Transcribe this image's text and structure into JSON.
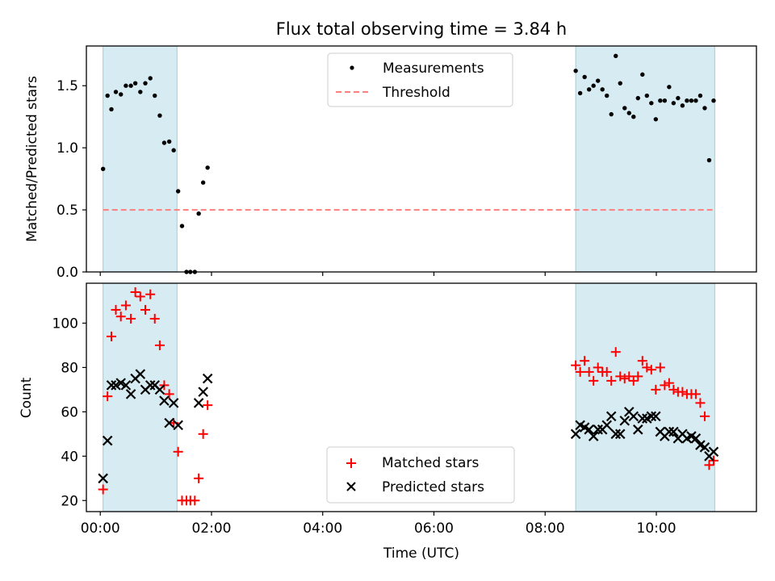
{
  "chart_data": [
    {
      "type": "scatter",
      "title": "Flux total observing time = 3.84 h",
      "xlabel": "",
      "ylabel": "Matched/Predicted stars",
      "xlim": [
        -0.25,
        11.8
      ],
      "ylim": [
        0.0,
        1.82
      ],
      "yticks": [
        0.0,
        0.5,
        1.0,
        1.5
      ],
      "ytick_labels": [
        "0.0",
        "0.5",
        "1.0",
        "1.5"
      ],
      "xticks": [
        0,
        2,
        4,
        6,
        8,
        10
      ],
      "xtick_labels": [
        "",
        "",
        "",
        "",
        "",
        ""
      ],
      "shaded_spans": [
        [
          0.05,
          1.38
        ],
        [
          8.55,
          11.05
        ]
      ],
      "legend_position": "top-center",
      "series": [
        {
          "name": "Measurements",
          "marker": "dot",
          "color": "#000000",
          "x": [
            0.05,
            0.13,
            0.2,
            0.28,
            0.37,
            0.46,
            0.55,
            0.63,
            0.72,
            0.81,
            0.9,
            0.98,
            1.07,
            1.15,
            1.24,
            1.32,
            1.4,
            1.47,
            1.55,
            1.62,
            1.7,
            1.77,
            1.85,
            1.93,
            8.55,
            8.63,
            8.71,
            8.79,
            8.87,
            8.95,
            9.03,
            9.11,
            9.19,
            9.27,
            9.35,
            9.43,
            9.51,
            9.59,
            9.67,
            9.75,
            9.83,
            9.91,
            9.99,
            10.07,
            10.15,
            10.23,
            10.31,
            10.39,
            10.47,
            10.55,
            10.63,
            10.71,
            10.79,
            10.87,
            10.95,
            11.03
          ],
          "y": [
            0.83,
            1.42,
            1.31,
            1.45,
            1.43,
            1.5,
            1.5,
            1.52,
            1.45,
            1.52,
            1.56,
            1.42,
            1.26,
            1.04,
            1.05,
            0.98,
            0.65,
            0.37,
            0.0,
            0.0,
            0.0,
            0.47,
            0.72,
            0.84,
            1.62,
            1.44,
            1.57,
            1.47,
            1.5,
            1.54,
            1.47,
            1.42,
            1.27,
            1.74,
            1.52,
            1.32,
            1.28,
            1.25,
            1.4,
            1.59,
            1.42,
            1.36,
            1.23,
            1.38,
            1.38,
            1.49,
            1.36,
            1.4,
            1.34,
            1.38,
            1.38,
            1.38,
            1.42,
            1.32,
            0.9,
            1.38
          ]
        },
        {
          "name": "Threshold",
          "marker": "dashed-line",
          "color": "#ff7f7f",
          "x": [
            0.05,
            11.05
          ],
          "y": [
            0.5,
            0.5
          ]
        }
      ]
    },
    {
      "type": "scatter",
      "title": "",
      "xlabel": "Time (UTC)",
      "ylabel": "Count",
      "xlim": [
        -0.25,
        11.8
      ],
      "ylim": [
        15,
        118
      ],
      "yticks": [
        20,
        40,
        60,
        80,
        100
      ],
      "ytick_labels": [
        "20",
        "40",
        "60",
        "80",
        "100"
      ],
      "xticks": [
        0,
        2,
        4,
        6,
        8,
        10
      ],
      "xtick_labels": [
        "00:00",
        "02:00",
        "04:00",
        "06:00",
        "08:00",
        "10:00"
      ],
      "shaded_spans": [
        [
          0.05,
          1.38
        ],
        [
          8.55,
          11.05
        ]
      ],
      "legend_position": "bottom-center",
      "series": [
        {
          "name": "Matched stars",
          "marker": "plus",
          "color": "#ff0000",
          "x": [
            0.05,
            0.13,
            0.2,
            0.28,
            0.37,
            0.46,
            0.55,
            0.63,
            0.72,
            0.81,
            0.9,
            0.98,
            1.07,
            1.15,
            1.24,
            1.32,
            1.4,
            1.47,
            1.55,
            1.62,
            1.7,
            1.77,
            1.85,
            1.93,
            8.55,
            8.63,
            8.71,
            8.79,
            8.87,
            8.95,
            9.03,
            9.11,
            9.19,
            9.27,
            9.35,
            9.43,
            9.51,
            9.59,
            9.67,
            9.75,
            9.83,
            9.91,
            9.99,
            10.07,
            10.15,
            10.23,
            10.31,
            10.39,
            10.47,
            10.55,
            10.63,
            10.71,
            10.79,
            10.87,
            10.95,
            11.03
          ],
          "y": [
            25,
            67,
            94,
            106,
            103,
            108,
            102,
            114,
            112,
            106,
            113,
            102,
            90,
            72,
            68,
            55,
            42,
            20,
            20,
            20,
            20,
            30,
            50,
            63,
            81,
            78,
            83,
            78,
            74,
            80,
            78,
            78,
            74,
            87,
            76,
            75,
            76,
            74,
            76,
            83,
            80,
            79,
            70,
            80,
            72,
            73,
            70,
            69,
            69,
            68,
            68,
            68,
            64,
            58,
            36,
            38
          ]
        },
        {
          "name": "Predicted stars",
          "marker": "x",
          "color": "#000000",
          "x": [
            0.05,
            0.13,
            0.2,
            0.28,
            0.37,
            0.46,
            0.55,
            0.63,
            0.72,
            0.81,
            0.9,
            0.98,
            1.07,
            1.15,
            1.24,
            1.32,
            1.4,
            1.77,
            1.85,
            1.93,
            8.55,
            8.63,
            8.71,
            8.79,
            8.87,
            8.95,
            9.03,
            9.11,
            9.19,
            9.27,
            9.35,
            9.43,
            9.51,
            9.59,
            9.67,
            9.75,
            9.83,
            9.91,
            9.99,
            10.07,
            10.15,
            10.23,
            10.31,
            10.39,
            10.47,
            10.55,
            10.63,
            10.71,
            10.79,
            10.87,
            10.95,
            11.03
          ],
          "y": [
            30,
            47,
            72,
            72,
            73,
            72,
            68,
            75,
            77,
            70,
            72,
            72,
            70,
            65,
            55,
            64,
            54,
            64,
            69,
            75,
            50,
            54,
            53,
            52,
            49,
            52,
            52,
            54,
            58,
            50,
            50,
            56,
            60,
            58,
            52,
            57,
            57,
            58,
            58,
            51,
            49,
            51,
            51,
            48,
            50,
            48,
            49,
            48,
            45,
            44,
            40,
            42
          ]
        }
      ]
    }
  ]
}
